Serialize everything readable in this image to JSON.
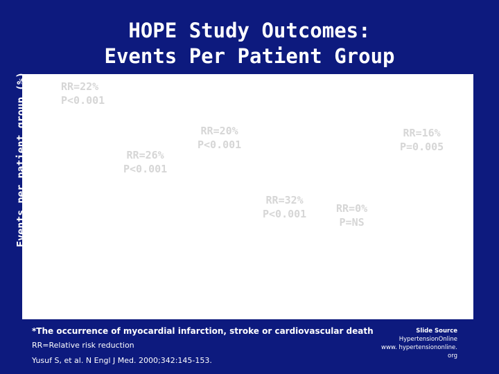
{
  "chart_data": {
    "type": "bar",
    "title_line1": "HOPE Study Outcomes:",
    "title_line2": "Events Per Patient Group",
    "ylabel": "Events per patient group (%)",
    "series": [],
    "annotations": [
      {
        "rr": "RR=22%",
        "p": "P<0.001"
      },
      {
        "rr": "RR=26%",
        "p": "P<0.001"
      },
      {
        "rr": "RR=20%",
        "p": "P<0.001"
      },
      {
        "rr": "RR=32%",
        "p": "P<0.001"
      },
      {
        "rr": "RR=0%",
        "p": "P=NS"
      },
      {
        "rr": "RR=16%",
        "p": "P=0.005"
      }
    ]
  },
  "footnotes": {
    "definition": "*The occurrence of myocardial infarction, stroke or cardiovascular death",
    "rr_note": "RR=Relative risk reduction",
    "citation": "Yusuf S, et al. N Engl J Med. 2000;342:145-153."
  },
  "source": {
    "heading": "Slide Source",
    "line1": "Hypertension",
    "line1b": "Online",
    "line2": "www. hypertensiononline.",
    "line3": "org"
  },
  "colors": {
    "background": "#0d1a7e",
    "plot": "#ffffff",
    "annotation": "#d6d6d6"
  }
}
